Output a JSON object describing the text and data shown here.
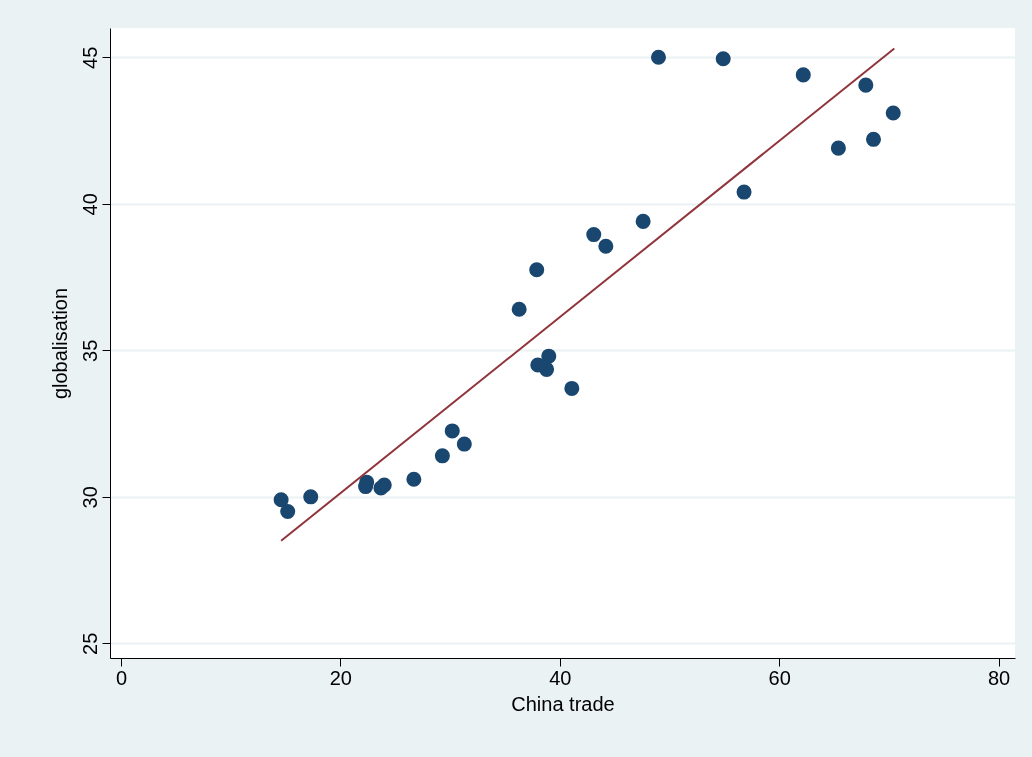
{
  "chart_data": {
    "type": "scatter",
    "xlabel": "China trade",
    "ylabel": "globalisation",
    "xlim": [
      -1,
      81.5
    ],
    "ylim": [
      24.5,
      46
    ],
    "xticks": [
      0,
      20,
      40,
      60,
      80
    ],
    "yticks": [
      25,
      30,
      35,
      40,
      45
    ],
    "grid": "y",
    "series": [
      {
        "marker": "circle",
        "color": "#1a476f",
        "x": [
          14.6,
          15.2,
          17.3,
          22.4,
          22.3,
          23.7,
          24.0,
          26.7,
          29.3,
          30.2,
          31.3,
          36.3,
          37.9,
          38.0,
          38.8,
          39.0,
          41.1,
          43.1,
          44.2,
          47.6,
          49.0,
          54.9,
          56.8,
          62.2,
          65.4,
          67.9,
          68.6,
          70.4
        ],
        "values": [
          29.9,
          29.5,
          30.0,
          30.5,
          30.35,
          30.3,
          30.4,
          30.6,
          31.4,
          32.25,
          31.8,
          36.4,
          37.75,
          34.5,
          34.35,
          34.8,
          33.7,
          38.95,
          38.55,
          39.4,
          45.0,
          44.95,
          40.4,
          44.4,
          41.9,
          44.05,
          42.2,
          43.1
        ]
      },
      {
        "type": "line",
        "color": "#90353b",
        "x": [
          14.6,
          70.5
        ],
        "values": [
          28.5,
          45.3
        ]
      }
    ]
  }
}
